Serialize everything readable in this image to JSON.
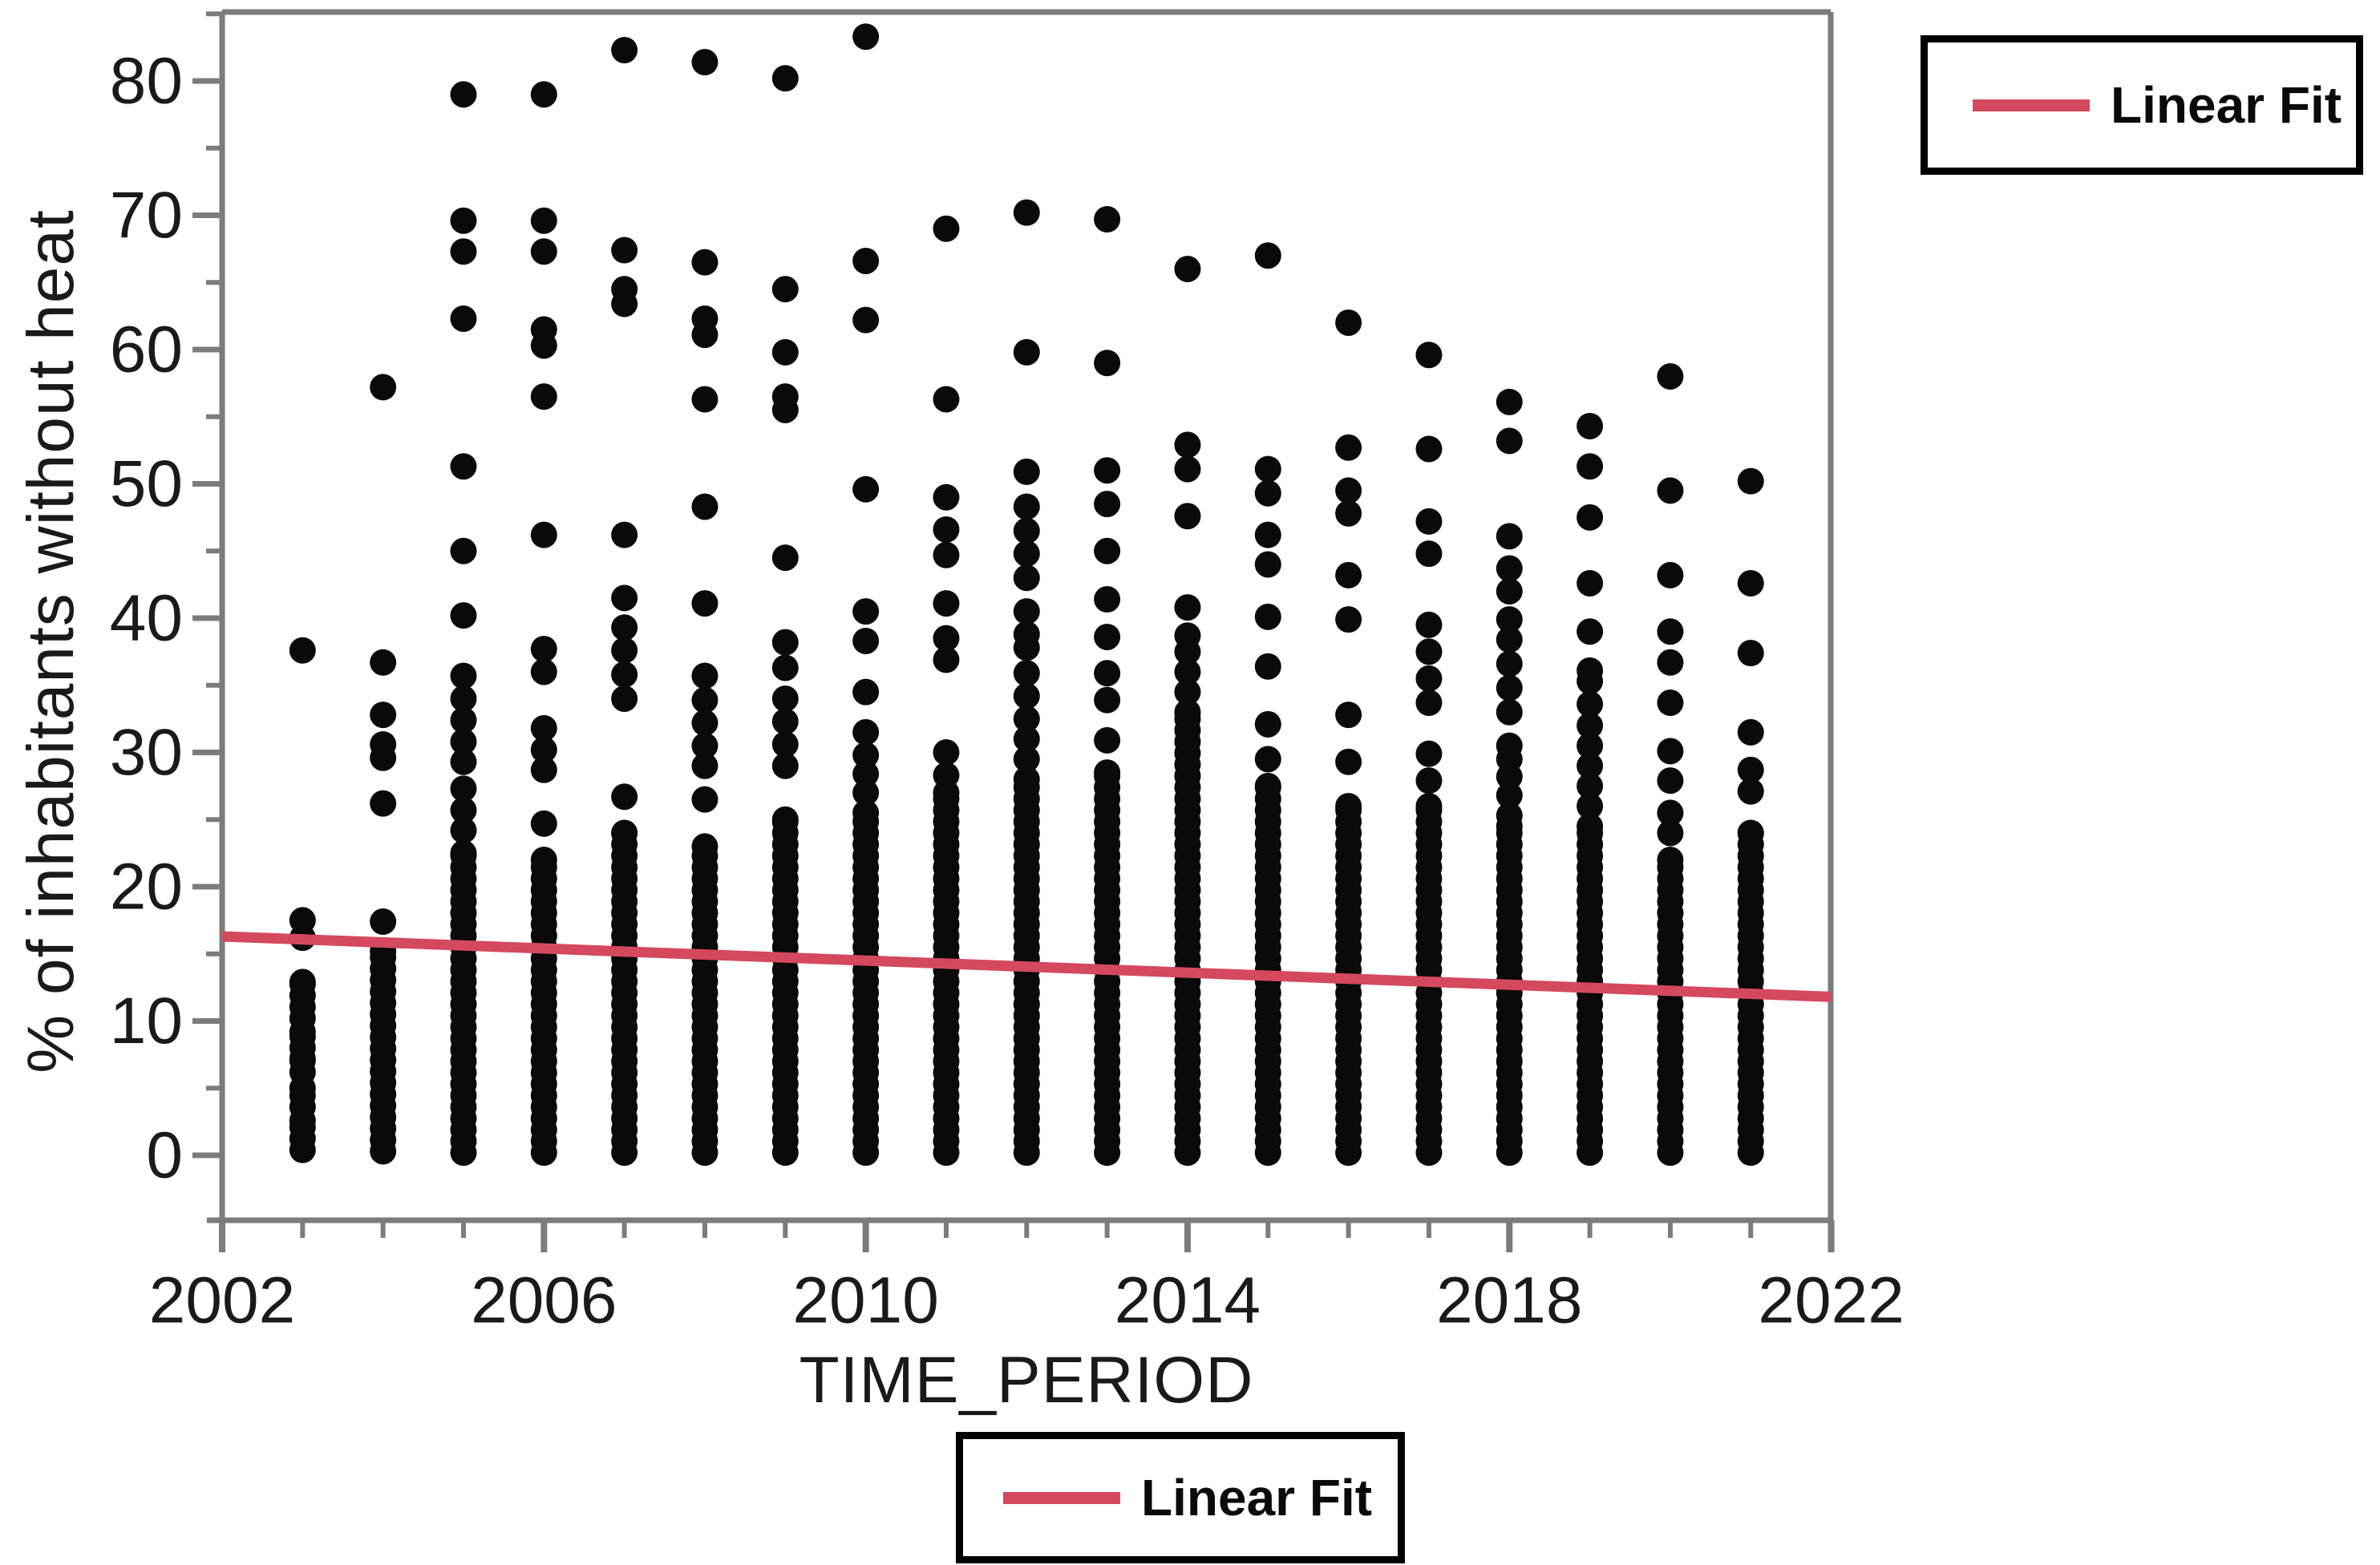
{
  "chart_data": {
    "type": "scatter",
    "xlabel": "TIME_PERIOD",
    "ylabel": "% of inhabitants without heat",
    "xlim": [
      2002,
      2022
    ],
    "ylim": [
      0,
      80
    ],
    "grid": false,
    "x_major_ticks": [
      2002,
      2006,
      2010,
      2014,
      2018,
      2022
    ],
    "x_minor_tick_step": 1,
    "y_major_ticks": [
      0,
      10,
      20,
      30,
      40,
      50,
      60,
      70,
      80
    ],
    "y_minor_ticks": [
      5,
      15,
      25,
      35,
      45,
      55,
      65,
      75,
      85
    ],
    "x_tick_labels": [
      "2002",
      "2006",
      "2010",
      "2014",
      "2018",
      "2022"
    ],
    "y_tick_labels": [
      "0",
      "10",
      "20",
      "30",
      "40",
      "50",
      "60",
      "70",
      "80"
    ],
    "point_color": "#0a0a0a",
    "point_radius_px": 16.5,
    "dense_fill_step": 0.85,
    "linear_fit": {
      "label": "Linear Fit",
      "color": "#d4495e",
      "x1": 2002,
      "y1": 16.3,
      "x2": 2022,
      "y2": 11.8
    },
    "legend_positions": [
      "top-right",
      "bottom-center"
    ],
    "series": [
      {
        "year": 2003,
        "dense_segments": [
          [
            0.4,
            2.6
          ],
          [
            3.6,
            5.0
          ],
          [
            6.2,
            7.2
          ],
          [
            8.0,
            9.2
          ],
          [
            10.2,
            12.9
          ]
        ],
        "points": [
          16.2,
          17.5,
          37.6
        ]
      },
      {
        "year": 2004,
        "dense_segments": [
          [
            0.3,
            15.2
          ]
        ],
        "points": [
          17.4,
          26.2,
          29.6,
          30.6,
          32.8,
          36.7,
          57.2
        ]
      },
      {
        "year": 2005,
        "dense_segments": [
          [
            0.2,
            22.5
          ]
        ],
        "points": [
          24.2,
          25.7,
          27.3,
          29.3,
          30.8,
          32.4,
          34.0,
          35.7,
          40.2,
          45.0,
          51.3,
          62.3,
          67.3,
          69.6,
          79.0
        ]
      },
      {
        "year": 2006,
        "dense_segments": [
          [
            0.2,
            22.0
          ]
        ],
        "points": [
          24.7,
          28.7,
          30.2,
          31.8,
          36.0,
          37.7,
          46.2,
          56.5,
          60.3,
          61.5,
          67.3,
          69.6,
          79.0
        ]
      },
      {
        "year": 2007,
        "dense_segments": [
          [
            0.2,
            24.0
          ]
        ],
        "points": [
          26.7,
          34.0,
          35.8,
          37.6,
          39.3,
          41.5,
          46.2,
          63.4,
          64.5,
          67.4,
          82.3
        ]
      },
      {
        "year": 2008,
        "dense_segments": [
          [
            0.2,
            23.0
          ]
        ],
        "points": [
          26.5,
          29.0,
          30.5,
          32.2,
          33.9,
          35.7,
          41.1,
          48.3,
          56.3,
          61.1,
          62.3,
          66.5,
          81.4
        ]
      },
      {
        "year": 2009,
        "dense_segments": [
          [
            0.2,
            25.0
          ]
        ],
        "points": [
          29.0,
          30.6,
          32.3,
          34.0,
          36.3,
          38.2,
          44.5,
          55.5,
          56.5,
          59.8,
          64.5,
          80.2
        ]
      },
      {
        "year": 2010,
        "dense_segments": [
          [
            0.2,
            25.5
          ]
        ],
        "points": [
          27.0,
          28.4,
          29.8,
          31.5,
          34.5,
          38.3,
          40.5,
          49.6,
          62.2,
          66.6,
          83.3
        ]
      },
      {
        "year": 2011,
        "dense_segments": [
          [
            0.2,
            27.0
          ]
        ],
        "points": [
          28.3,
          30.0,
          36.9,
          38.5,
          41.1,
          44.7,
          46.6,
          49.0,
          56.3,
          69.0
        ]
      },
      {
        "year": 2012,
        "dense_segments": [
          [
            0.2,
            28.0
          ]
        ],
        "points": [
          29.5,
          31.0,
          32.5,
          34.2,
          35.9,
          37.8,
          38.8,
          40.5,
          43.0,
          44.8,
          46.5,
          48.3,
          50.9,
          59.8,
          70.2
        ]
      },
      {
        "year": 2013,
        "dense_segments": [
          [
            0.2,
            28.5
          ]
        ],
        "points": [
          30.9,
          33.9,
          35.9,
          38.6,
          41.4,
          45.0,
          48.5,
          51.0,
          59.0,
          69.7
        ]
      },
      {
        "year": 2014,
        "dense_segments": [
          [
            0.2,
            33.0
          ]
        ],
        "points": [
          34.5,
          36.0,
          37.5,
          38.7,
          40.8,
          47.6,
          51.1,
          52.9,
          66.0
        ]
      },
      {
        "year": 2015,
        "dense_segments": [
          [
            0.2,
            27.5
          ]
        ],
        "points": [
          29.5,
          32.1,
          36.4,
          40.1,
          44.0,
          46.2,
          49.3,
          51.1,
          67.0
        ]
      },
      {
        "year": 2016,
        "dense_segments": [
          [
            0.2,
            26.0
          ]
        ],
        "points": [
          29.3,
          32.8,
          39.9,
          43.2,
          47.8,
          49.5,
          52.7,
          62.0
        ]
      },
      {
        "year": 2017,
        "dense_segments": [
          [
            0.2,
            26.0
          ]
        ],
        "points": [
          27.9,
          29.9,
          33.7,
          35.5,
          37.5,
          39.5,
          44.8,
          47.2,
          52.6,
          59.6
        ]
      },
      {
        "year": 2018,
        "dense_segments": [
          [
            0.2,
            24.5
          ]
        ],
        "points": [
          25.3,
          26.8,
          28.2,
          29.5,
          30.5,
          33.0,
          34.8,
          36.6,
          38.4,
          39.9,
          42.0,
          43.7,
          46.1,
          53.2,
          56.1
        ]
      },
      {
        "year": 2019,
        "dense_segments": [
          [
            0.2,
            24.5
          ]
        ],
        "points": [
          26.0,
          27.5,
          29.0,
          30.5,
          32.0,
          33.6,
          35.3,
          36.1,
          39.0,
          42.6,
          47.5,
          51.3,
          54.3
        ]
      },
      {
        "year": 2020,
        "dense_segments": [
          [
            0.2,
            22.0
          ]
        ],
        "points": [
          24.0,
          25.5,
          27.9,
          30.1,
          33.7,
          36.7,
          39.0,
          43.2,
          49.5,
          58.0
        ]
      },
      {
        "year": 2021,
        "dense_segments": [
          [
            0.2,
            24.0
          ]
        ],
        "points": [
          27.1,
          28.7,
          31.5,
          37.4,
          42.6,
          50.2
        ]
      }
    ]
  },
  "axes": {
    "x_title": "TIME_PERIOD",
    "y_title": "% of inhabitants without heat",
    "frame_color": "#7c7c7c",
    "label_color": "#1a1a1a"
  },
  "legend_top": {
    "label": "Linear Fit",
    "swatch_color": "#d4495e"
  },
  "legend_bottom": {
    "label": "Linear Fit",
    "swatch_color": "#d4495e"
  }
}
